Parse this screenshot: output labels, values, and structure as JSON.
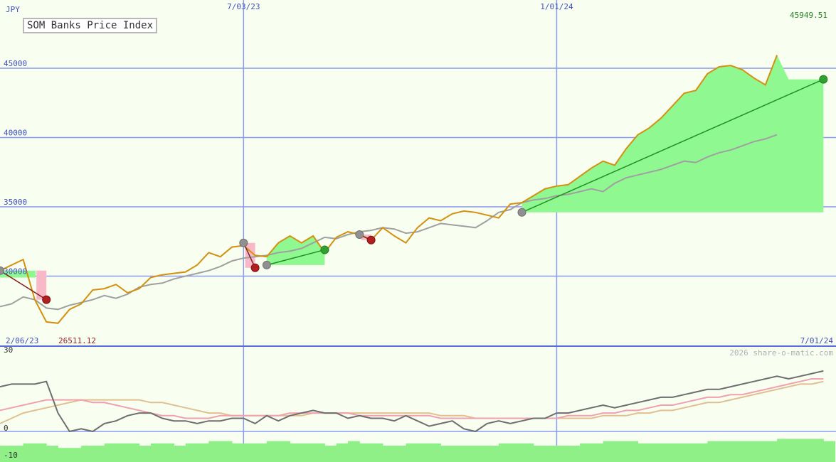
{
  "chart_data": [
    {
      "type": "line",
      "title": "SOM Banks Price Index",
      "ylabel": "JPY",
      "ylim": [
        28000,
        47000
      ],
      "y_ticks": [
        {
          "value": 45000,
          "label": "45000"
        },
        {
          "value": 40000,
          "label": "40000"
        },
        {
          "value": 35000,
          "label": "35000"
        },
        {
          "value": 30000,
          "label": "30000"
        }
      ],
      "x_date_labels": [
        {
          "t": 0,
          "label": "2/06/23"
        },
        {
          "t": 21,
          "label": "7/03/23"
        },
        {
          "t": 48,
          "label": "1/01/24"
        },
        {
          "t": 74,
          "label": "7/01/24"
        }
      ],
      "price_high_label": "45949.51",
      "price_low_label": "26511.12",
      "copyright": "2026 share-o-matic.com",
      "series": [
        {
          "role": "price",
          "color": "#d49010",
          "values": [
            30400,
            30800,
            31200,
            28300,
            26700,
            26600,
            27600,
            28000,
            29000,
            29100,
            29400,
            28800,
            29100,
            29900,
            30100,
            30200,
            30300,
            30800,
            31700,
            31400,
            32100,
            32200,
            31500,
            31400,
            32400,
            32900,
            32400,
            32900,
            31700,
            32800,
            33200,
            33000,
            32600,
            33500,
            32900,
            32400,
            33500,
            34200,
            34000,
            34500,
            34700,
            34600,
            34400,
            34200,
            35200,
            35300,
            35800,
            36300,
            36500,
            36600,
            37200,
            37800,
            38300,
            38000,
            39200,
            40200,
            40700,
            41400,
            42300,
            43200,
            43400,
            44600,
            45100,
            45200,
            44900,
            44300,
            43800,
            45949
          ]
        },
        {
          "role": "comparison",
          "color": "#a0a0a0",
          "values": [
            27800,
            28000,
            28500,
            28300,
            27700,
            27600,
            27900,
            28100,
            28300,
            28600,
            28400,
            28700,
            29200,
            29400,
            29500,
            29800,
            30000,
            30200,
            30400,
            30700,
            31100,
            31300,
            31400,
            31500,
            31700,
            31800,
            32000,
            32400,
            32800,
            32700,
            33000,
            33200,
            33300,
            33500,
            33400,
            33100,
            33200,
            33500,
            33800,
            33700,
            33600,
            33500,
            34000,
            34600,
            34800,
            35300,
            35500,
            35600,
            35800,
            35900,
            36100,
            36300,
            36100,
            36700,
            37100,
            37300,
            37500,
            37700,
            38000,
            38300,
            38200,
            38600,
            38900,
            39100,
            39400,
            39700,
            39900,
            40200
          ]
        }
      ],
      "trades": [
        {
          "t": 0,
          "entry": 30400,
          "t2": 4,
          "exit": 28300,
          "result": "loss"
        },
        {
          "t": 21,
          "entry": 32400,
          "t2": 22,
          "exit": 30600,
          "result": "loss"
        },
        {
          "t": 23,
          "entry": 30800,
          "t2": 28,
          "exit": 31900,
          "result": "win"
        },
        {
          "t": 31,
          "entry": 33000,
          "t2": 32,
          "exit": 32600,
          "result": "loss"
        },
        {
          "t": 45,
          "entry": 34600,
          "t2": 71,
          "exit": 44200,
          "result": "win"
        }
      ]
    },
    {
      "type": "line",
      "ylim": [
        -10,
        30
      ],
      "y_ticks": [
        {
          "value": 30,
          "label": "30"
        },
        {
          "value": 0,
          "label": "0"
        },
        {
          "value": -10,
          "label": "-10"
        }
      ],
      "series": [
        {
          "role": "momentum",
          "color": "#6e6e6e",
          "values": [
            17,
            18,
            18,
            18,
            19,
            7,
            0,
            1,
            0,
            3,
            4,
            6,
            7,
            7,
            5,
            4,
            4,
            3,
            4,
            4,
            5,
            5,
            3,
            6,
            4,
            6,
            7,
            8,
            7,
            7,
            5,
            6,
            5,
            5,
            4,
            6,
            4,
            2,
            3,
            4,
            1,
            0,
            3,
            4,
            3,
            4,
            5,
            5,
            7,
            7,
            8,
            9,
            10,
            9,
            10,
            11,
            12,
            13,
            13,
            14,
            15,
            16,
            16,
            17,
            18,
            19,
            20,
            21,
            20,
            21,
            22,
            23
          ]
        },
        {
          "role": "average-fast",
          "color": "#f0a0b0",
          "values": [
            8,
            9,
            10,
            11,
            12,
            12,
            12,
            12,
            11,
            11,
            10,
            9,
            8,
            7,
            6,
            6,
            5,
            5,
            5,
            6,
            6,
            6,
            6,
            6,
            6,
            7,
            7,
            7,
            7,
            7,
            7,
            6,
            6,
            6,
            6,
            6,
            6,
            6,
            5,
            5,
            5,
            5,
            5,
            5,
            5,
            5,
            5,
            5,
            5,
            6,
            6,
            6,
            7,
            7,
            8,
            8,
            9,
            10,
            10,
            11,
            12,
            13,
            13,
            14,
            14,
            15,
            16,
            17,
            18,
            19,
            20,
            20
          ]
        },
        {
          "role": "average-slow",
          "color": "#e0c090",
          "values": [
            3,
            5,
            7,
            8,
            9,
            10,
            11,
            12,
            12,
            12,
            12,
            12,
            12,
            11,
            11,
            10,
            9,
            8,
            7,
            7,
            6,
            6,
            6,
            6,
            6,
            6,
            6,
            7,
            7,
            7,
            7,
            7,
            7,
            7,
            7,
            7,
            7,
            7,
            6,
            6,
            6,
            5,
            5,
            5,
            5,
            5,
            5,
            5,
            5,
            5,
            5,
            5,
            6,
            6,
            6,
            7,
            7,
            8,
            8,
            9,
            10,
            11,
            11,
            12,
            13,
            14,
            15,
            16,
            17,
            18,
            18,
            19
          ]
        },
        {
          "role": "volume-band",
          "color": "#90f088",
          "values": [
            -8,
            -8,
            -7,
            -7,
            -8,
            -9,
            -9,
            -8,
            -8,
            -7,
            -7,
            -7,
            -8,
            -7,
            -7,
            -8,
            -7,
            -7,
            -6,
            -6,
            -7,
            -7,
            -7,
            -6,
            -6,
            -7,
            -7,
            -7,
            -8,
            -7,
            -6,
            -7,
            -7,
            -8,
            -8,
            -7,
            -7,
            -7,
            -8,
            -8,
            -8,
            -8,
            -8,
            -7,
            -7,
            -7,
            -8,
            -8,
            -8,
            -8,
            -7,
            -7,
            -6,
            -6,
            -6,
            -7,
            -7,
            -7,
            -7,
            -7,
            -7,
            -6,
            -6,
            -6,
            -6,
            -6,
            -6,
            -5,
            -5,
            -5,
            -5,
            -6
          ]
        }
      ]
    }
  ]
}
